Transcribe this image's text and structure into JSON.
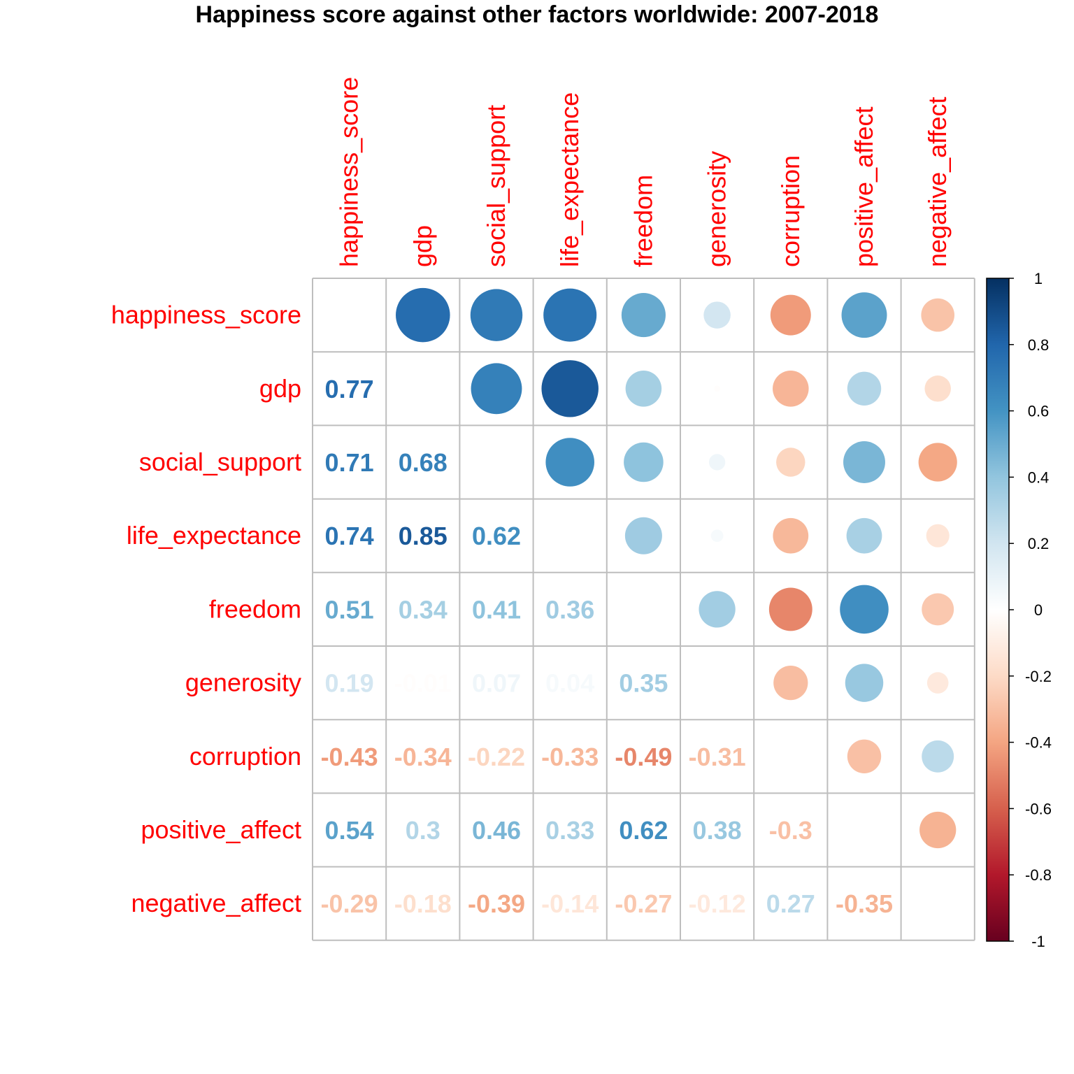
{
  "chart_data": {
    "type": "heatmap",
    "subtype": "correlation-matrix-mixed",
    "title": "Happiness score against other factors worldwide: 2007-2018",
    "variables": [
      "happiness_score",
      "gdp",
      "social_support",
      "life_expectance",
      "freedom",
      "generosity",
      "corruption",
      "positive_affect",
      "negative_affect"
    ],
    "upper_method": "circle",
    "lower_method": "number",
    "diagonal": "blank",
    "matrix": [
      [
        1.0,
        0.77,
        0.71,
        0.74,
        0.51,
        0.19,
        -0.43,
        0.54,
        -0.29
      ],
      [
        0.77,
        1.0,
        0.68,
        0.85,
        0.34,
        -0.01,
        -0.34,
        0.3,
        -0.18
      ],
      [
        0.71,
        0.68,
        1.0,
        0.62,
        0.41,
        0.07,
        -0.22,
        0.46,
        -0.39
      ],
      [
        0.74,
        0.85,
        0.62,
        1.0,
        0.36,
        0.04,
        -0.33,
        0.33,
        -0.14
      ],
      [
        0.51,
        0.34,
        0.41,
        0.36,
        1.0,
        0.35,
        -0.49,
        0.62,
        -0.27
      ],
      [
        0.19,
        -0.01,
        0.07,
        0.04,
        0.35,
        1.0,
        -0.31,
        0.38,
        -0.12
      ],
      [
        -0.43,
        -0.34,
        -0.22,
        -0.33,
        -0.49,
        -0.31,
        1.0,
        -0.3,
        0.27
      ],
      [
        0.54,
        0.3,
        0.46,
        0.33,
        0.62,
        0.38,
        -0.3,
        1.0,
        -0.35
      ],
      [
        -0.29,
        -0.18,
        -0.39,
        -0.14,
        -0.27,
        -0.12,
        0.27,
        -0.35,
        1.0
      ]
    ],
    "colorbar": {
      "range": [
        -1,
        1
      ],
      "ticks": [
        "1",
        "0.8",
        "0.6",
        "0.4",
        "0.2",
        "0",
        "-0.2",
        "-0.4",
        "-0.6",
        "-0.8",
        "-1"
      ],
      "tick_values": [
        1,
        0.8,
        0.6,
        0.4,
        0.2,
        0,
        -0.2,
        -0.4,
        -0.6,
        -0.8,
        -1
      ],
      "palette": [
        "#67001F",
        "#B2182B",
        "#D6604D",
        "#F4A582",
        "#FDDBC7",
        "#FFFFFF",
        "#D1E5F0",
        "#92C5DE",
        "#4393C3",
        "#2166AC",
        "#053061"
      ],
      "placement": "right"
    },
    "label_color": "#FF0000",
    "grid_color": "#BEBEBE"
  }
}
